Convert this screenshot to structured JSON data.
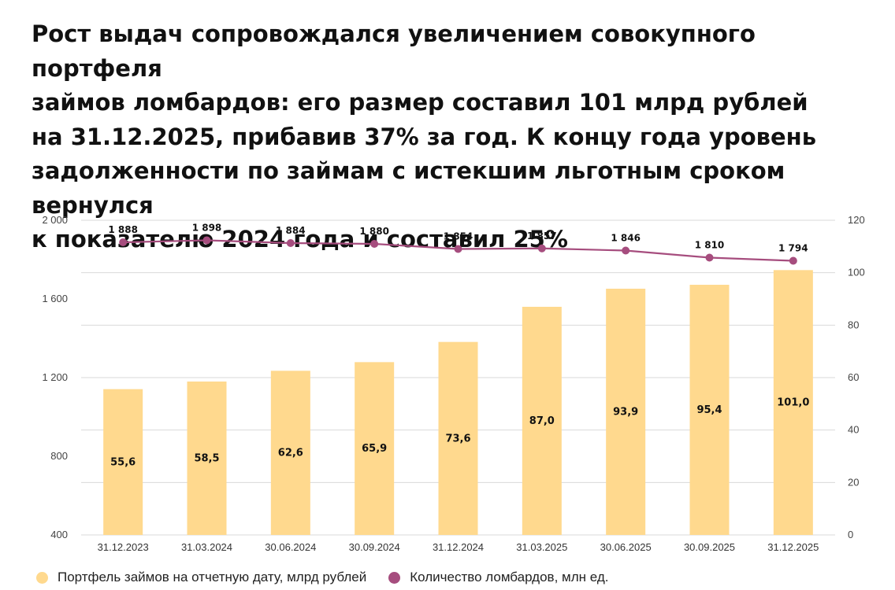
{
  "title_lines": [
    "Рост выдач сопровождался увеличением совокупного портфеля",
    "займов ломбардов: его размер составил 101 млрд рублей",
    "на 31.12.2025, прибавив 37% за год. К концу года уровень",
    "задолженности по займам с истекшим льготным сроком вернулся",
    "к показателю 2024 года и составил 25%"
  ],
  "colors": {
    "bar": "#FFD98E",
    "line": "#A64D7E",
    "grid": "#D9D9D9"
  },
  "chart_data": {
    "type": "bar",
    "categories": [
      "31.12.2023",
      "31.03.2024",
      "30.06.2024",
      "30.09.2024",
      "31.12.2024",
      "31.03.2025",
      "30.06.2025",
      "30.09.2025",
      "31.12.2025"
    ],
    "series": [
      {
        "name": "Портфель займов на отчетную дату, млрд рублей",
        "type": "bar",
        "axis": "right",
        "values": [
          55.6,
          58.5,
          62.6,
          65.9,
          73.6,
          87.0,
          93.9,
          95.4,
          101.0
        ],
        "labels": [
          "55,6",
          "58,5",
          "62,6",
          "65,9",
          "73,6",
          "87,0",
          "93,9",
          "95,4",
          "101,0"
        ]
      },
      {
        "name": "Количество ломбардов, млн ед.",
        "type": "line",
        "axis": "left",
        "values": [
          1888,
          1898,
          1884,
          1880,
          1854,
          1857,
          1846,
          1810,
          1794
        ],
        "labels": [
          "1 888",
          "1 898",
          "1 884",
          "1 880",
          "1 854",
          "1 857",
          "1 846",
          "1 810",
          "1 794"
        ]
      }
    ],
    "left_axis": {
      "ylim": [
        400,
        2000
      ],
      "ticks": [
        400,
        800,
        1200,
        1600,
        2000
      ],
      "tick_labels": [
        "400",
        "800",
        "1 200",
        "1 600",
        "2 000"
      ]
    },
    "right_axis": {
      "ylim": [
        0,
        120
      ],
      "ticks": [
        0,
        20,
        40,
        60,
        80,
        100,
        120
      ],
      "tick_labels": [
        "0",
        "20",
        "40",
        "60",
        "80",
        "100",
        "120"
      ]
    },
    "grid": true,
    "legend_position": "bottom-left"
  }
}
